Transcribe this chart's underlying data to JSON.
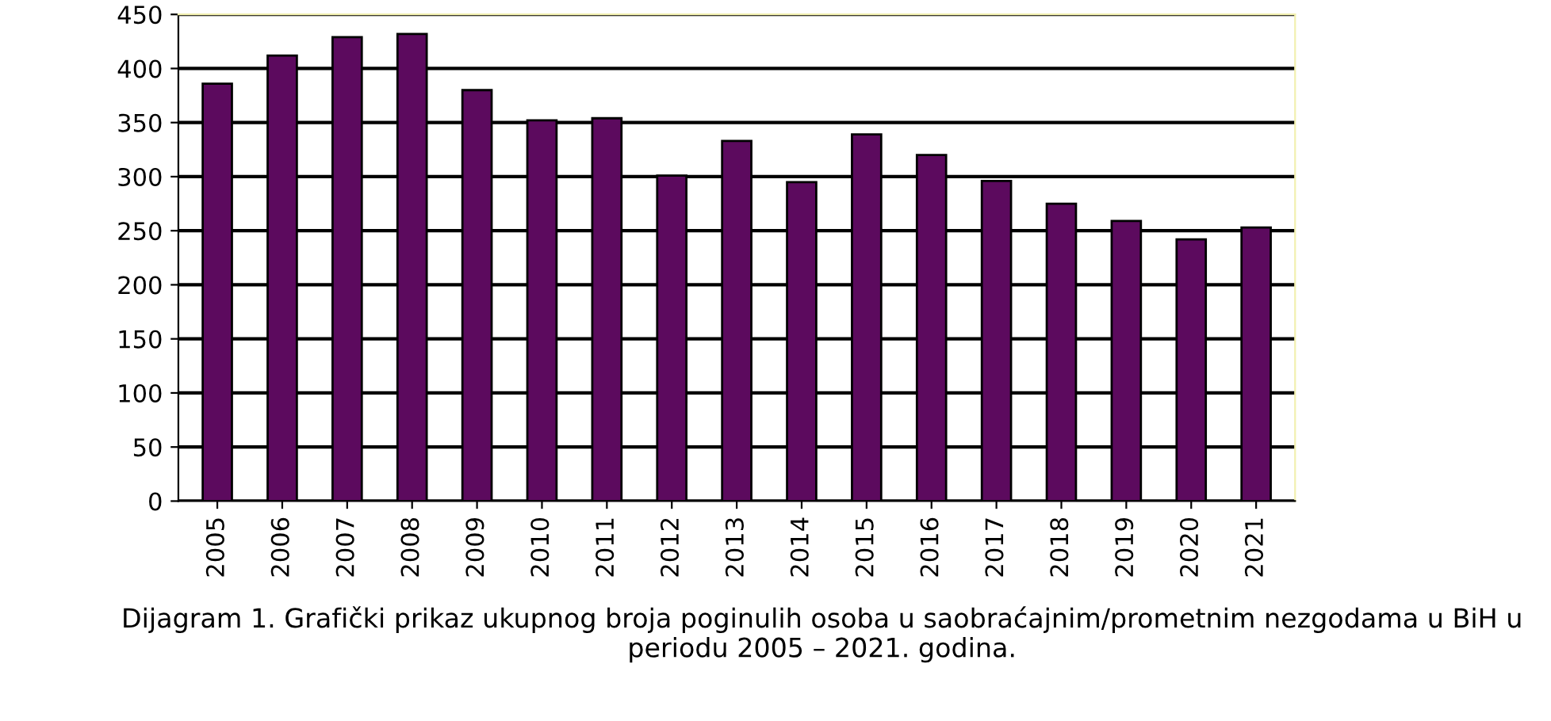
{
  "chart_data": {
    "type": "bar",
    "categories": [
      "2005",
      "2006",
      "2007",
      "2008",
      "2009",
      "2010",
      "2011",
      "2012",
      "2013",
      "2014",
      "2015",
      "2016",
      "2017",
      "2018",
      "2019",
      "2020",
      "2021"
    ],
    "values": [
      386,
      412,
      429,
      432,
      380,
      352,
      354,
      301,
      333,
      295,
      339,
      320,
      296,
      275,
      259,
      242,
      253
    ],
    "color": "#5c0a5e",
    "ylim": [
      0,
      450
    ],
    "yticks": [
      0,
      50,
      100,
      150,
      200,
      250,
      300,
      350,
      400,
      450
    ],
    "grid": "y",
    "annotations": [
      "Dijagram 1. Grafički prikaz ukupnog broja poginulih osoba u saobraćajnim/prometnim nezgodama u BiH u periodu 2005 – 2021. godina."
    ]
  }
}
